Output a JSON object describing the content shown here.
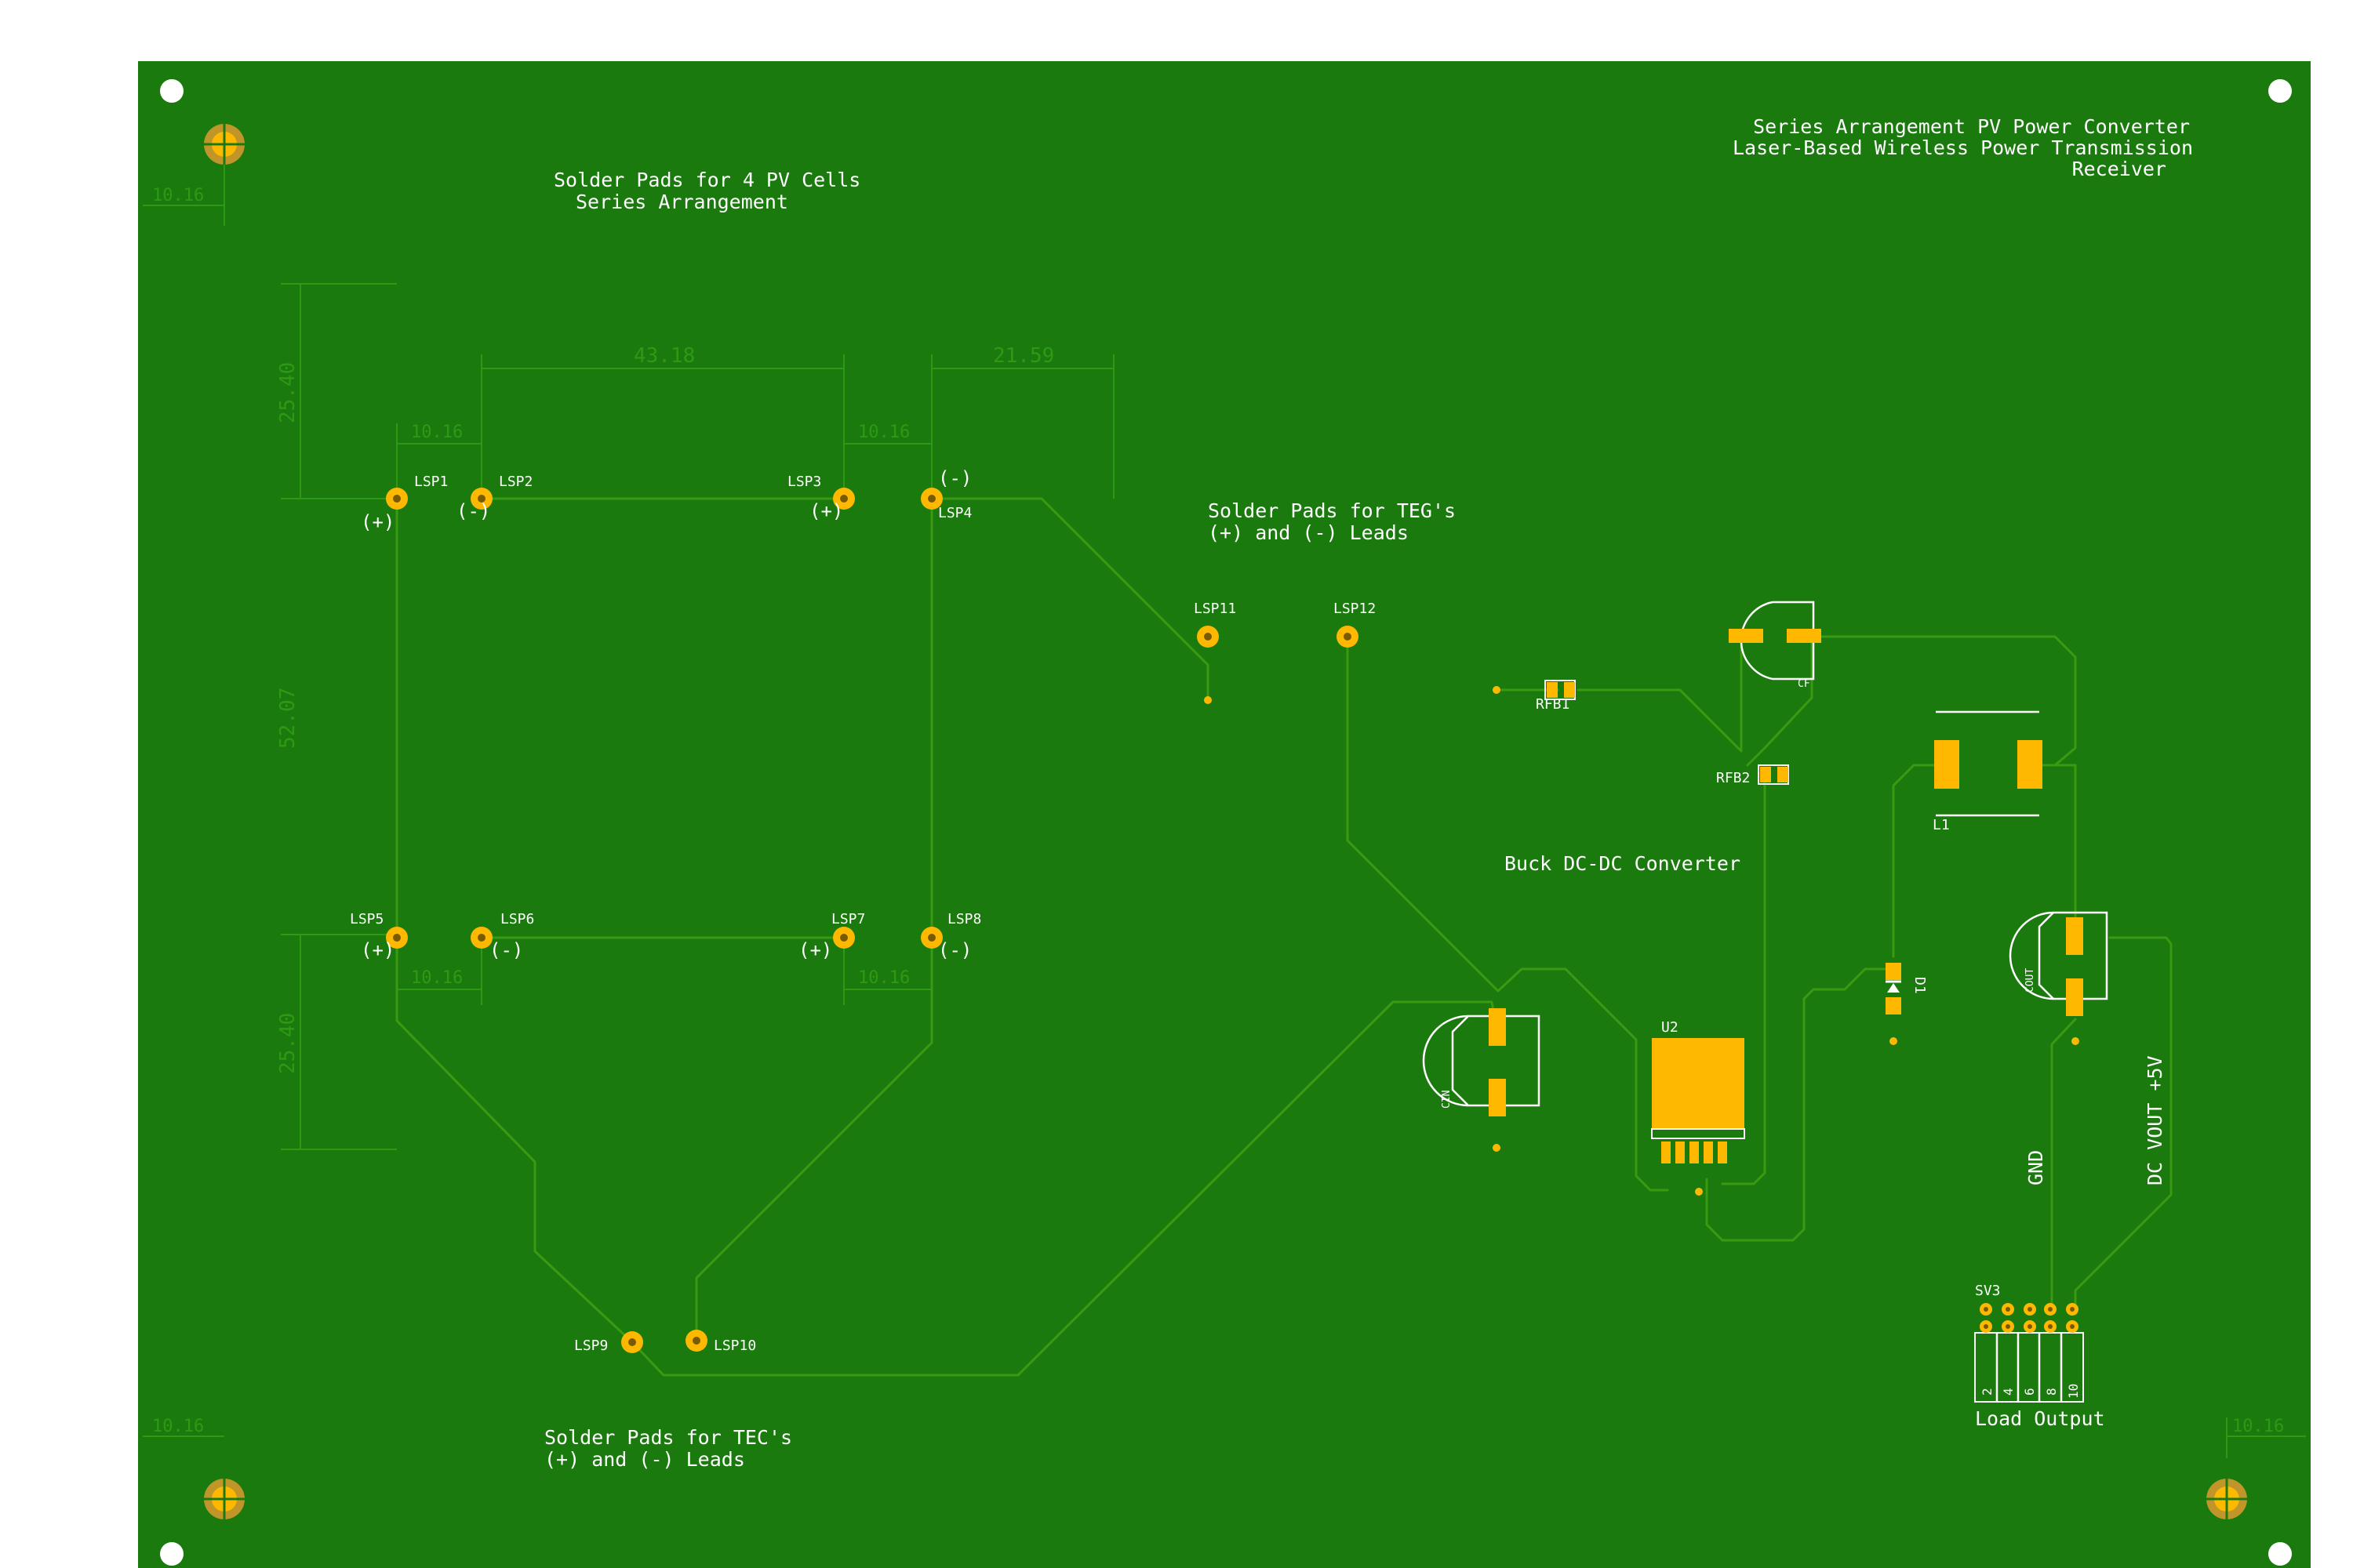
{
  "board": {
    "colors": {
      "background": "#ffffff",
      "soldermask": "#1b7a0e",
      "trace": "#3a9a12",
      "pad": "#ffb800",
      "silkscreen": "#ffffff",
      "fab_dimension": "#2e9a14",
      "fiducial_mark": "#c0962a"
    },
    "title": {
      "line1": "Series Arrangement PV Power Converter",
      "line2": "Laser-Based Wireless Power Transmission",
      "line3": "Receiver"
    },
    "notes": {
      "pv_line1": "Solder Pads for 4 PV Cells",
      "pv_line2": "Series Arrangement",
      "teg_line1": "Solder Pads for TEG's",
      "teg_line2": "(+) and (-) Leads",
      "tec_line1": "Solder Pads for TEC's",
      "tec_line2": "(+) and (-) Leads",
      "buck": "Buck DC-DC Converter",
      "load_output": "Load Output",
      "gnd": "GND",
      "vout": "DC VOUT +5V"
    },
    "refs": {
      "lsp1": "LSP1",
      "lsp2": "LSP2",
      "lsp3": "LSP3",
      "lsp4": "LSP4",
      "lsp5": "LSP5",
      "lsp6": "LSP6",
      "lsp7": "LSP7",
      "lsp8": "LSP8",
      "lsp9": "LSP9",
      "lsp10": "LSP10",
      "lsp11": "LSP11",
      "lsp12": "LSP12",
      "rfb1": "RFB1",
      "rfb2": "RFB2",
      "cf": "CF",
      "l1": "L1",
      "d1": "D1",
      "cout": "COUT",
      "cin": "CIN",
      "u2": "U2",
      "sv3": "SV3"
    },
    "polarity": {
      "plus": "(+)",
      "minus": "(-)"
    },
    "dimensions": {
      "d_10_16": "10.16",
      "d_43_18": "43.18",
      "d_21_59": "21.59",
      "d_25_40": "25.40",
      "d_52_07": "52.07"
    },
    "connector_pins": [
      "2",
      "4",
      "6",
      "8",
      "10"
    ]
  }
}
